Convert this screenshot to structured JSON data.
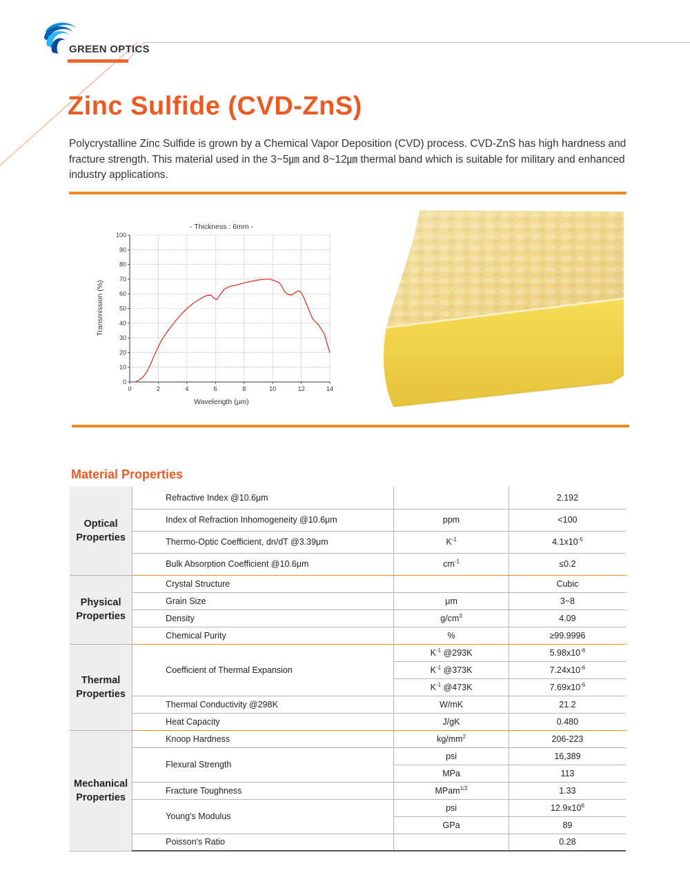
{
  "brand": {
    "name": "GREEN OPTICS"
  },
  "page": {
    "title": "Zinc Sulfide (CVD-ZnS)",
    "intro": "Polycrystalline Zinc Sulfide is grown by a Chemical Vapor Deposition (CVD) process. CVD-ZnS has high hardness and fracture strength. This material used in the 3~5㎛ and 8~12㎛ thermal band which is suitable for military and enhanced industry applications.",
    "photo_caption": ""
  },
  "colors": {
    "accent": "#ea5b24",
    "rule": "#f08c1d",
    "curve": "#e0312d"
  },
  "chart_data": {
    "type": "line",
    "title": "- Thickness : 6mm -",
    "xlabel": "Wavelength (μm)",
    "ylabel": "Transmission (%)",
    "xlim": [
      0,
      14
    ],
    "ylim": [
      0,
      100
    ],
    "xticks": [
      0,
      2,
      4,
      6,
      8,
      10,
      12,
      14
    ],
    "yticks": [
      0,
      10,
      20,
      30,
      40,
      50,
      60,
      70,
      80,
      90,
      100
    ],
    "grid": true,
    "series": [
      {
        "x": [
          0.4,
          0.6,
          0.9,
          1.2,
          1.5,
          1.8,
          2.2,
          2.6,
          3.0,
          3.5,
          4.0,
          4.5,
          5.0,
          5.4,
          5.7,
          5.9,
          6.1,
          6.3,
          6.6,
          7.0,
          7.5,
          8.0,
          8.5,
          9.0,
          9.5,
          9.8,
          10.1,
          10.4,
          10.6,
          10.8,
          11.0,
          11.3,
          11.6,
          11.8,
          12.0,
          12.2,
          12.5,
          12.8,
          13.2,
          13.6,
          14.0
        ],
        "y": [
          0,
          1,
          3,
          7,
          13,
          20,
          28,
          34,
          39,
          45,
          50,
          54,
          57,
          59,
          59,
          57,
          56,
          59,
          63,
          65,
          66,
          67.5,
          68.5,
          69.5,
          70,
          70,
          69,
          68,
          66,
          62,
          60,
          59,
          61,
          62,
          61,
          57,
          50,
          43,
          39,
          33,
          20
        ]
      }
    ]
  },
  "table": {
    "title": "Material Properties",
    "groups": [
      {
        "name": "Optical Properties",
        "rows": [
          {
            "prop": "Refractive Index @10.6μm",
            "units": [
              {
                "u": "",
                "v": "2.192"
              }
            ]
          },
          {
            "prop": "Index of Refraction Inhomogeneity @10.6μm",
            "units": [
              {
                "u": "ppm",
                "v": "<100"
              }
            ]
          },
          {
            "prop": "Thermo-Optic Coefficient, dn/dT @3.39μm",
            "units": [
              {
                "u": "K",
                "u_sup": "-1",
                "v": "4.1x10",
                "v_sup": "-5"
              }
            ]
          },
          {
            "prop": "Bulk Absorption Coefficient @10.6μm",
            "units": [
              {
                "u": "cm",
                "u_sup": "-1",
                "v": "≤0.2"
              }
            ]
          }
        ]
      },
      {
        "name": "Physical Properties",
        "rows": [
          {
            "prop": "Crystal Structure",
            "units": [
              {
                "u": "",
                "v": "Cubic"
              }
            ]
          },
          {
            "prop": "Grain Size",
            "units": [
              {
                "u": "μm",
                "v": "3~8"
              }
            ]
          },
          {
            "prop": "Density",
            "units": [
              {
                "u": "g/cm",
                "u_sup": "3",
                "v": "4.09"
              }
            ]
          },
          {
            "prop": "Chemical Purity",
            "units": [
              {
                "u": "%",
                "v": "≥99.9996"
              }
            ]
          }
        ]
      },
      {
        "name": "Thermal Properties",
        "rows": [
          {
            "prop": "Coefficient of Thermal Expansion",
            "units": [
              {
                "u": "K",
                "u_sup": "-1",
                "u_suffix": " @293K",
                "v": "5.98x10",
                "v_sup": "-6"
              },
              {
                "u": "K",
                "u_sup": "-1",
                "u_suffix": " @373K",
                "v": "7.24x10",
                "v_sup": "-6"
              },
              {
                "u": "K",
                "u_sup": "-1",
                "u_suffix": " @473K",
                "v": "7.69x10",
                "v_sup": "-6"
              }
            ]
          },
          {
            "prop": "Thermal Conductivity @298K",
            "units": [
              {
                "u": "W/mK",
                "v": "21.2"
              }
            ]
          },
          {
            "prop": "Heat Capacity",
            "units": [
              {
                "u": "J/gK",
                "v": "0.480"
              }
            ]
          }
        ]
      },
      {
        "name": "Mechanical Properties",
        "rows": [
          {
            "prop": "Knoop Hardness",
            "units": [
              {
                "u": "kg/mm",
                "u_sup": "2",
                "v": "206-223"
              }
            ]
          },
          {
            "prop": "Flexural Strength",
            "units": [
              {
                "u": "psi",
                "v": "16,389"
              },
              {
                "u": "MPa",
                "v": "113"
              }
            ]
          },
          {
            "prop": "Fracture Toughness",
            "units": [
              {
                "u": "MPam",
                "u_sup": "1/2",
                "v": "1.33"
              }
            ]
          },
          {
            "prop": "Young's Modulus",
            "units": [
              {
                "u": "psi",
                "v": "12.9x10",
                "v_sup": "6"
              },
              {
                "u": "GPa",
                "v": "89"
              }
            ]
          },
          {
            "prop": "Poisson's Ratio",
            "units": [
              {
                "u": "",
                "v": "0.28"
              }
            ]
          }
        ]
      }
    ]
  }
}
